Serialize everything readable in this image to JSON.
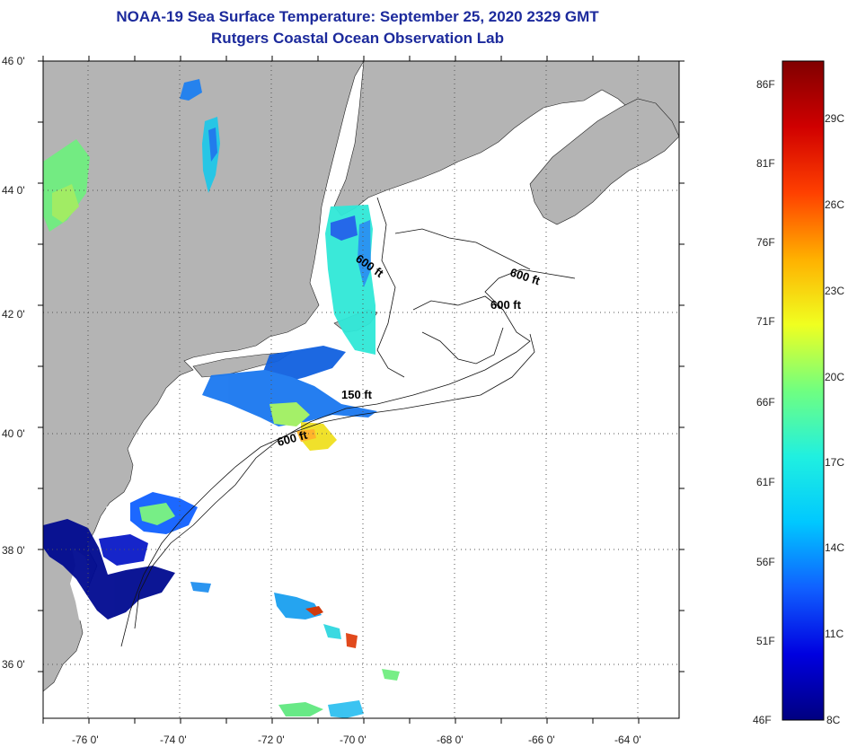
{
  "title": {
    "line1": "NOAA-19 Sea Surface Temperature:  September 25, 2020 2329 GMT",
    "line2": "Rutgers Coastal Ocean Observation Lab"
  },
  "map": {
    "lon_ticks": [
      "-76 0'",
      "-74 0'",
      "-72 0'",
      "-70 0'",
      "-68 0'",
      "-66 0'",
      "-64 0'"
    ],
    "lat_ticks": [
      "46 0'",
      "44 0'",
      "42 0'",
      "40 0'",
      "38 0'",
      "36 0'"
    ],
    "contour_labels": [
      "600 ft",
      "600 ft",
      "600 ft",
      "150 ft",
      "600 ft"
    ],
    "colors": {
      "land": "#b4b4b4",
      "ocean": "#ffffff",
      "grid": "#555555"
    }
  },
  "colorbar": {
    "fahrenheit_labels": [
      "86F",
      "81F",
      "76F",
      "71F",
      "66F",
      "61F",
      "56F",
      "51F",
      "46F"
    ],
    "celsius_labels": [
      "29C",
      "26C",
      "23C",
      "20C",
      "17C",
      "14C",
      "11C",
      "8C"
    ],
    "stops": [
      "#000080",
      "#0000e0",
      "#1060ff",
      "#00c8ff",
      "#20f0e0",
      "#70ff80",
      "#f0ff20",
      "#ffb000",
      "#ff4000",
      "#d00000",
      "#800000"
    ]
  }
}
